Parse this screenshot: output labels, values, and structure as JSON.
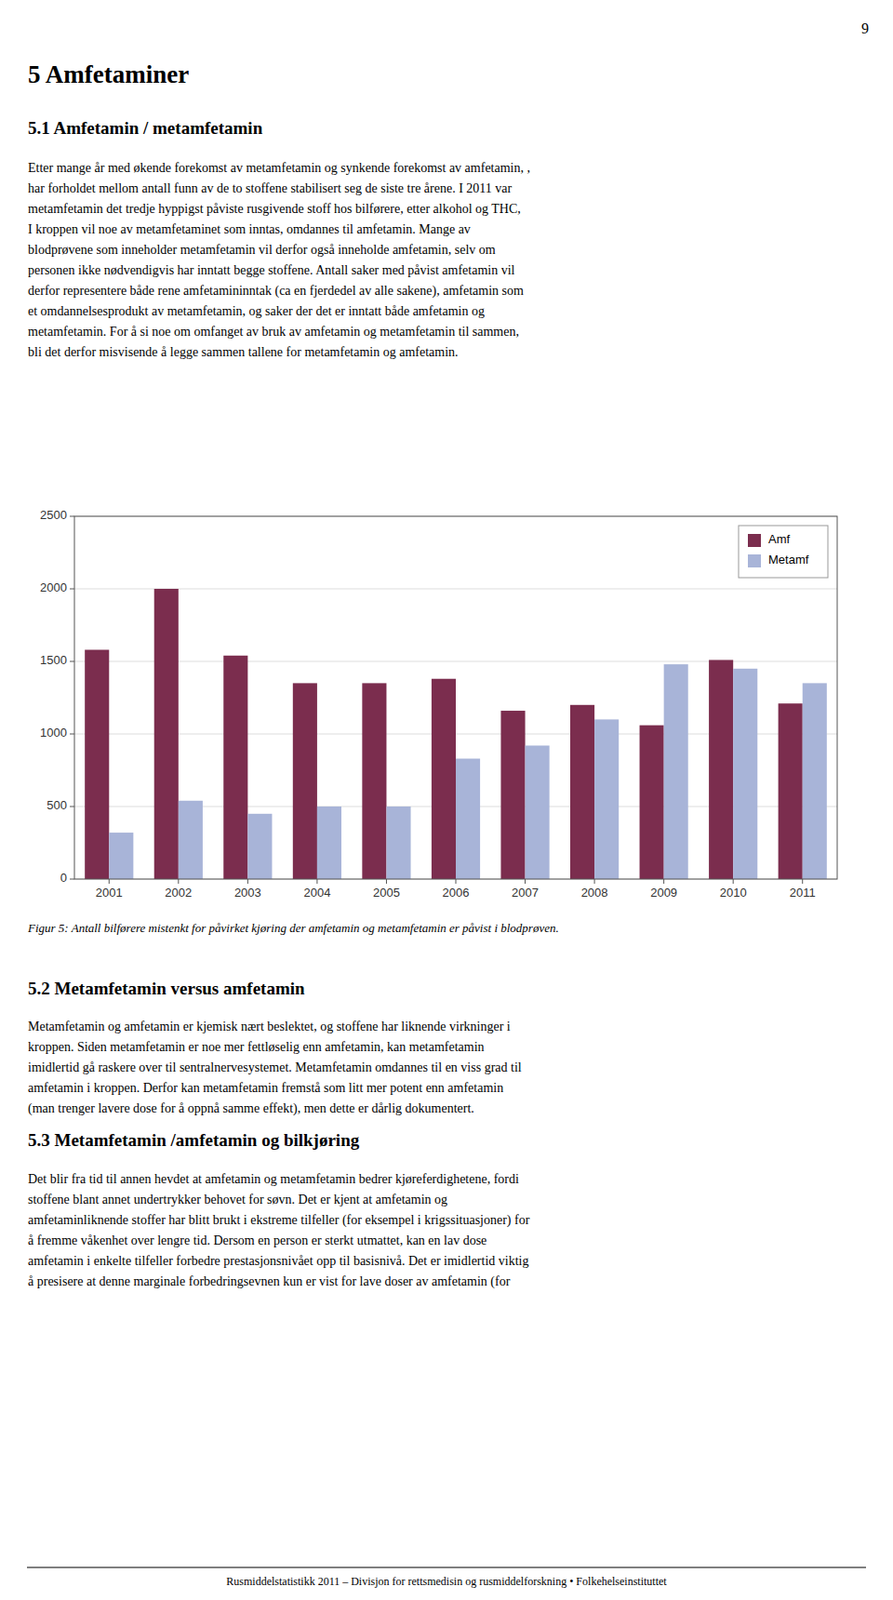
{
  "page_number": "9",
  "heading1": "5 Amfetaminer",
  "heading2": "5.1 Amfetamin / metamfetamin",
  "para1": [
    "Etter mange år med økende forekomst av metamfetamin og synkende forekomst av amfetamin, ,",
    "har forholdet mellom antall funn av de to stoffene stabilisert seg de siste tre årene. I 2011 var",
    "metamfetamin det tredje hyppigst påviste rusgivende stoff hos bilførere, etter alkohol og THC,",
    "I kroppen vil noe av metamfetaminet som inntas, omdannes til amfetamin. Mange av",
    "blodprøvene som inneholder metamfetamin vil derfor også inneholde amfetamin, selv om",
    "personen ikke nødvendigvis har inntatt begge stoffene. Antall saker med påvist amfetamin vil",
    "derfor representere både rene amfetamininntak (ca en fjerdedel av alle sakene), amfetamin som",
    "et omdannelsesprodukt av metamfetamin, og saker der det er inntatt både amfetamin og",
    "metamfetamin. For å si noe om omfanget av bruk av amfetamin og metamfetamin til sammen,",
    "bli det derfor misvisende å legge sammen tallene for metamfetamin og amfetamin."
  ],
  "fig_caption": "Figur 5: Antall bilførere mistenkt for påvirket kjøring der amfetamin og metamfetamin er påvist i blodprøven.",
  "heading3": "5.2 Metamfetamin versus amfetamin",
  "para2": [
    "Metamfetamin og amfetamin er kjemisk nært beslektet, og stoffene har liknende virkninger i",
    "kroppen. Siden metamfetamin er noe mer fettløselig enn amfetamin, kan metamfetamin",
    "imidlertid gå raskere over til sentralnervesystemet. Metamfetamin omdannes til en viss grad til",
    "amfetamin i kroppen. Derfor kan metamfetamin fremstå som litt mer potent enn amfetamin",
    "(man trenger lavere dose for å oppnå samme effekt), men dette er dårlig dokumentert."
  ],
  "heading4": "5.3 Metamfetamin /amfetamin og bilkjøring",
  "para3": [
    "Det blir fra tid til annen hevdet at amfetamin og metamfetamin bedrer kjøreferdighetene, fordi",
    "stoffene blant annet undertrykker behovet for søvn. Det er kjent at amfetamin og",
    "amfetaminliknende stoffer har blitt brukt i ekstreme tilfeller (for eksempel i krigssituasjoner) for",
    "å fremme våkenhet over lengre tid. Dersom en person er sterkt utmattet, kan en lav dose",
    "amfetamin i enkelte tilfeller forbedre prestasjonsnivået opp til basisnivå. Det er imidlertid viktig",
    "å presisere at denne marginale forbedringsevnen kun er vist for lave doser av amfetamin (for"
  ],
  "footer": "Rusmiddelstatistikk 2011 – Divisjon for rettsmedisin og rusmiddelforskning • Folkehelseinstituttet",
  "chart_data": {
    "type": "bar",
    "categories": [
      "2001",
      "2002",
      "2003",
      "2004",
      "2005",
      "2006",
      "2007",
      "2008",
      "2009",
      "2010",
      "2011"
    ],
    "series": [
      {
        "name": "Amf",
        "color": "#7B2D4E",
        "values": [
          1580,
          2000,
          1540,
          1350,
          1350,
          1380,
          1160,
          1200,
          1060,
          1510,
          1210
        ]
      },
      {
        "name": "Metamf",
        "color": "#A8B4D8",
        "values": [
          320,
          540,
          450,
          500,
          500,
          830,
          920,
          1100,
          1480,
          1450,
          1350
        ]
      }
    ],
    "ylim": [
      0,
      2500
    ],
    "yticks": [
      0,
      500,
      1000,
      1500,
      2000,
      2500
    ],
    "grid": true,
    "legend": "upper right"
  }
}
